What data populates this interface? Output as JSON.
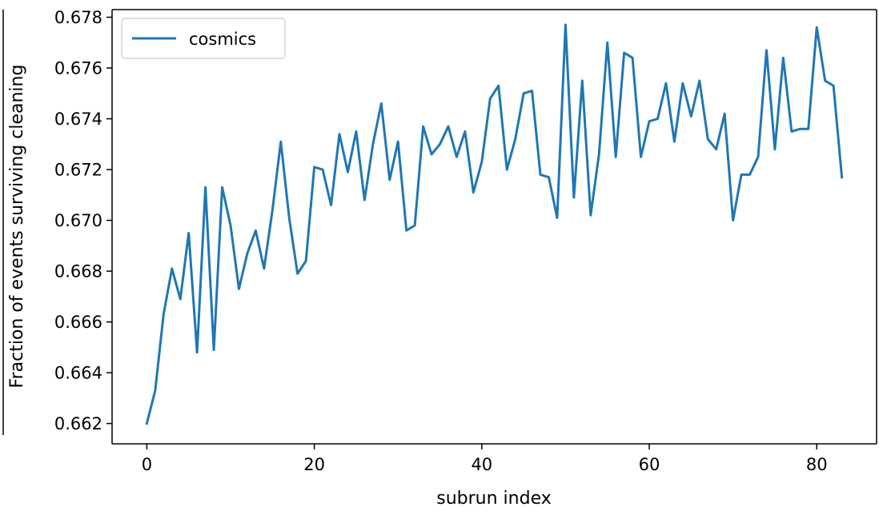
{
  "chart_data": {
    "type": "line",
    "title": "",
    "xlabel": "subrun index",
    "ylabel": "Fraction of events surviving cleaning",
    "xlim": [
      -4.15,
      87.15
    ],
    "ylim": [
      0.6612,
      0.6783
    ],
    "xticks": [
      0,
      20,
      40,
      60,
      80
    ],
    "xtick_labels": [
      "0",
      "20",
      "40",
      "60",
      "80"
    ],
    "yticks": [
      0.662,
      0.664,
      0.666,
      0.668,
      0.67,
      0.672,
      0.674,
      0.676,
      0.678
    ],
    "ytick_labels": [
      "0.662",
      "0.664",
      "0.666",
      "0.668",
      "0.670",
      "0.672",
      "0.674",
      "0.676",
      "0.678"
    ],
    "grid": false,
    "legend_position": "top-left",
    "series": [
      {
        "name": "cosmics",
        "color": "#1f77b4",
        "x": [
          0,
          1,
          2,
          3,
          4,
          5,
          6,
          7,
          8,
          9,
          10,
          11,
          12,
          13,
          14,
          15,
          16,
          17,
          18,
          19,
          20,
          21,
          22,
          23,
          24,
          25,
          26,
          27,
          28,
          29,
          30,
          31,
          32,
          33,
          34,
          35,
          36,
          37,
          38,
          39,
          40,
          41,
          42,
          43,
          44,
          45,
          46,
          47,
          48,
          49,
          50,
          51,
          52,
          53,
          54,
          55,
          56,
          57,
          58,
          59,
          60,
          61,
          62,
          63,
          64,
          65,
          66,
          67,
          68,
          69,
          70,
          71,
          72,
          73,
          74,
          75,
          76,
          77,
          78,
          79,
          80,
          81,
          82,
          83
        ],
        "values": [
          0.662,
          0.6633,
          0.6663,
          0.6681,
          0.6669,
          0.6695,
          0.6648,
          0.6713,
          0.6649,
          0.6713,
          0.6698,
          0.6673,
          0.6687,
          0.6696,
          0.6681,
          0.6704,
          0.6731,
          0.6701,
          0.6679,
          0.6684,
          0.6721,
          0.672,
          0.6706,
          0.6734,
          0.6719,
          0.6735,
          0.6708,
          0.673,
          0.6746,
          0.6716,
          0.6731,
          0.6696,
          0.6698,
          0.6737,
          0.6726,
          0.673,
          0.6737,
          0.6725,
          0.6735,
          0.6711,
          0.6723,
          0.6748,
          0.6753,
          0.672,
          0.6732,
          0.675,
          0.6751,
          0.6718,
          0.6717,
          0.6701,
          0.6777,
          0.6709,
          0.6755,
          0.6702,
          0.6726,
          0.677,
          0.6725,
          0.6766,
          0.6764,
          0.6725,
          0.6739,
          0.674,
          0.6754,
          0.6731,
          0.6754,
          0.6741,
          0.6755,
          0.6732,
          0.6728,
          0.6742,
          0.67,
          0.6718,
          0.6718,
          0.6725,
          0.6767,
          0.6728,
          0.6764,
          0.6735,
          0.6736,
          0.6736,
          0.6776,
          0.6755,
          0.6753,
          0.6717
        ]
      }
    ]
  }
}
